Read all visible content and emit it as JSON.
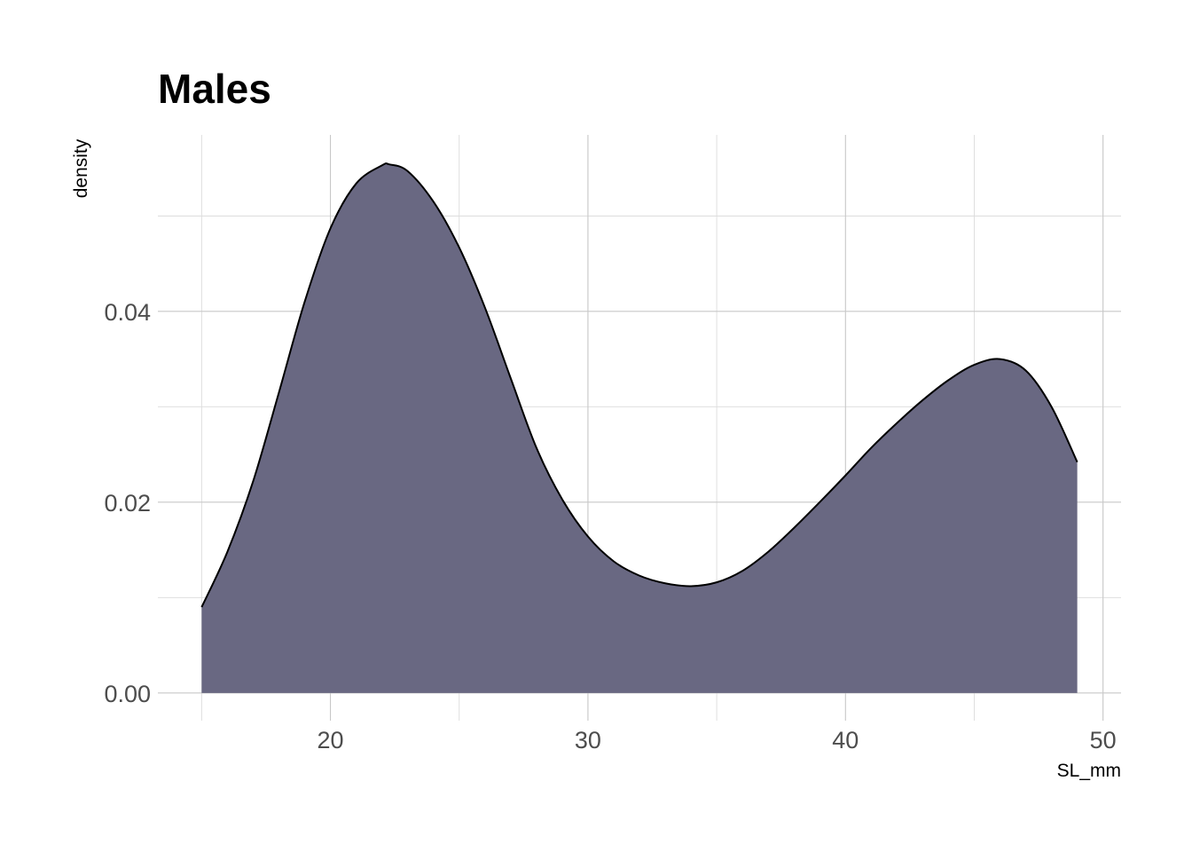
{
  "chart_data": {
    "type": "area",
    "title": "Males",
    "xlabel": "SL_mm",
    "ylabel": "density",
    "xlim": [
      13.3,
      50.7
    ],
    "ylim": [
      -0.0029,
      0.0585
    ],
    "x_ticks": [
      20,
      30,
      40,
      50
    ],
    "x_tick_labels": [
      "20",
      "30",
      "40",
      "50"
    ],
    "y_ticks": [
      0.0,
      0.02,
      0.04
    ],
    "y_tick_labels": [
      "0.00",
      "0.02",
      "0.04"
    ],
    "x_minor_ticks": [
      15,
      25,
      35,
      45
    ],
    "y_minor_ticks": [
      0.01,
      0.03,
      0.05
    ],
    "grid": true,
    "fill_color": "#696882",
    "line_color": "#000000",
    "series": [
      {
        "x": [
          15,
          16,
          17,
          18,
          19,
          20,
          21,
          22,
          22.3,
          23,
          24,
          25,
          26,
          27,
          28,
          29,
          30,
          31,
          32,
          33,
          34,
          35,
          36,
          37,
          38,
          39,
          40,
          41,
          42,
          43,
          44,
          45,
          46,
          47,
          48,
          49
        ],
        "y": [
          0.009,
          0.0148,
          0.0222,
          0.0315,
          0.041,
          0.0487,
          0.0534,
          0.0553,
          0.0554,
          0.0547,
          0.0515,
          0.0467,
          0.0404,
          0.033,
          0.0257,
          0.0203,
          0.0164,
          0.0138,
          0.0123,
          0.0115,
          0.0112,
          0.0116,
          0.0128,
          0.0148,
          0.0173,
          0.02,
          0.0228,
          0.0257,
          0.0283,
          0.0307,
          0.0328,
          0.0344,
          0.035,
          0.0338,
          0.03,
          0.0242
        ]
      }
    ]
  }
}
